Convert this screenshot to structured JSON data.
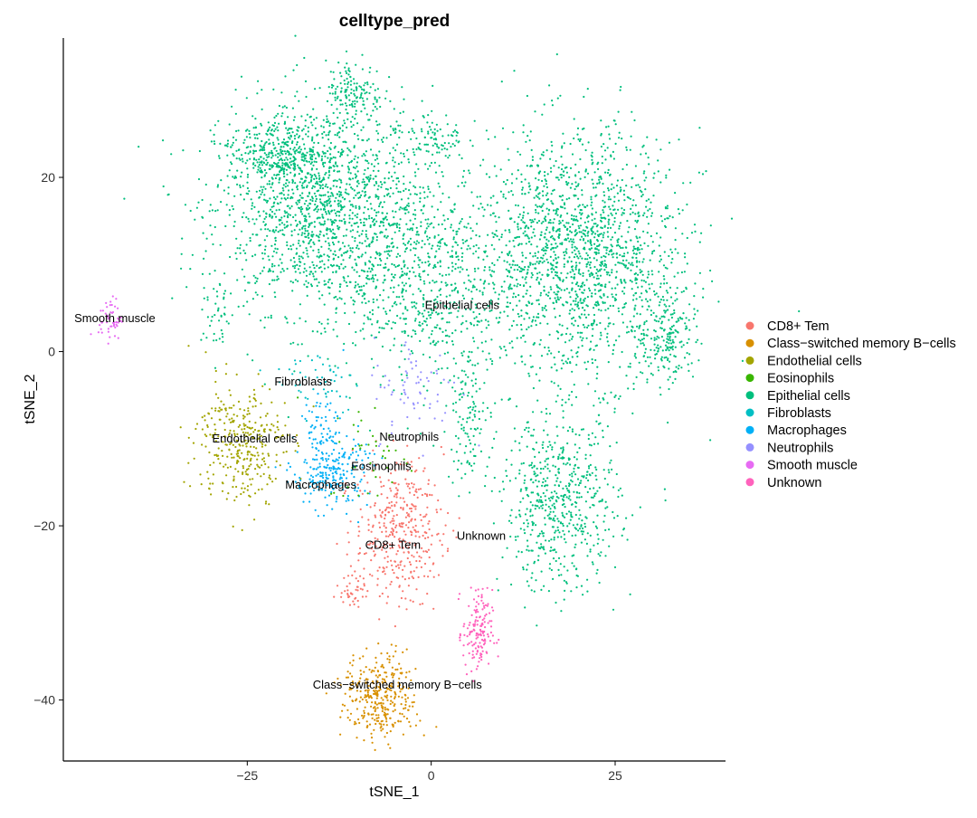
{
  "chart_data": {
    "type": "scatter",
    "title": "celltype_pred",
    "xlabel": "tSNE_1",
    "ylabel": "tSNE_2",
    "xlim": [
      -50,
      40
    ],
    "ylim": [
      -47,
      36
    ],
    "xticks": [
      -25,
      0,
      25
    ],
    "yticks": [
      -40,
      -20,
      0,
      20
    ],
    "grid": false,
    "legend_position": "right",
    "categories": [
      {
        "name": "CD8+ Tem",
        "color": "#F8766D"
      },
      {
        "name": "Class−switched memory B−cells",
        "color": "#D89000"
      },
      {
        "name": "Endothelial cells",
        "color": "#A3A500"
      },
      {
        "name": "Eosinophils",
        "color": "#39B600"
      },
      {
        "name": "Epithelial cells",
        "color": "#00BF7D"
      },
      {
        "name": "Fibroblasts",
        "color": "#00BFC4"
      },
      {
        "name": "Macrophages",
        "color": "#00B0F6"
      },
      {
        "name": "Neutrophils",
        "color": "#9590FF"
      },
      {
        "name": "Smooth muscle",
        "color": "#E76BF3"
      },
      {
        "name": "Unknown",
        "color": "#FF62BC"
      }
    ],
    "clusters_approx": [
      {
        "category": 4,
        "center": [
          -15.4,
          16.6
        ],
        "sd": [
          7,
          6
        ],
        "n": 1500
      },
      {
        "category": 4,
        "center": [
          -21.6,
          22.8
        ],
        "sd": [
          3,
          2
        ],
        "n": 250
      },
      {
        "category": 4,
        "center": [
          -10.5,
          29.5
        ],
        "sd": [
          2,
          2
        ],
        "n": 150
      },
      {
        "category": 4,
        "center": [
          -2,
          9
        ],
        "sd": [
          6,
          6
        ],
        "n": 700
      },
      {
        "category": 4,
        "center": [
          0.5,
          24.5
        ],
        "sd": [
          2,
          1.5
        ],
        "n": 80
      },
      {
        "category": 4,
        "center": [
          20,
          11
        ],
        "sd": [
          7,
          7
        ],
        "n": 1700
      },
      {
        "category": 4,
        "center": [
          32,
          2
        ],
        "sd": [
          2,
          3
        ],
        "n": 200
      },
      {
        "category": 4,
        "center": [
          17.5,
          -17.5
        ],
        "sd": [
          4,
          5
        ],
        "n": 600
      },
      {
        "category": 4,
        "center": [
          -29,
          4
        ],
        "sd": [
          1,
          2
        ],
        "n": 40
      },
      {
        "category": 4,
        "center": [
          5,
          -7
        ],
        "sd": [
          1.5,
          4
        ],
        "n": 120
      },
      {
        "category": 2,
        "center": [
          -25.9,
          -10.5
        ],
        "sd": [
          3,
          3.5
        ],
        "n": 330
      },
      {
        "category": 6,
        "center": [
          -13.6,
          -14
        ],
        "sd": [
          2.5,
          2
        ],
        "n": 220
      },
      {
        "category": 6,
        "center": [
          -14.8,
          -8.4
        ],
        "sd": [
          1.5,
          2
        ],
        "n": 70
      },
      {
        "category": 0,
        "center": [
          -4.4,
          -20.5
        ],
        "sd": [
          3,
          4
        ],
        "n": 380
      },
      {
        "category": 0,
        "center": [
          -10.5,
          -27.5
        ],
        "sd": [
          1,
          1
        ],
        "n": 40
      },
      {
        "category": 1,
        "center": [
          -6.9,
          -39.7
        ],
        "sd": [
          2.5,
          2.5
        ],
        "n": 330
      },
      {
        "category": 9,
        "center": [
          6.3,
          -32.4
        ],
        "sd": [
          1,
          2.5
        ],
        "n": 150
      },
      {
        "category": 8,
        "center": [
          -43.6,
          3.8
        ],
        "sd": [
          0.8,
          1.2
        ],
        "n": 50
      },
      {
        "category": 5,
        "center": [
          -15.4,
          -3.2
        ],
        "sd": [
          3,
          2
        ],
        "n": 50
      },
      {
        "category": 7,
        "center": [
          -2,
          -4.3
        ],
        "sd": [
          3,
          3
        ],
        "n": 70
      },
      {
        "category": 3,
        "center": [
          -8,
          -11.6
        ],
        "sd": [
          3,
          3
        ],
        "n": 40
      }
    ],
    "annotations": [
      {
        "text": "Smooth muscle",
        "x": -43,
        "y": 3.8
      },
      {
        "text": "Epithelial cells",
        "x": 4.2,
        "y": 5.3
      },
      {
        "text": "Fibroblasts",
        "x": -17.4,
        "y": -3.5
      },
      {
        "text": "Endothelial cells",
        "x": -24,
        "y": -10
      },
      {
        "text": "Neutrophils",
        "x": -3,
        "y": -9.8
      },
      {
        "text": "Eosinophils",
        "x": -6.8,
        "y": -13.2
      },
      {
        "text": "Macrophages",
        "x": -15,
        "y": -15.3
      },
      {
        "text": "CD8+ Tem",
        "x": -5.2,
        "y": -22.2
      },
      {
        "text": "Unknown",
        "x": 6.8,
        "y": -21.2
      },
      {
        "text": "Class−switched memory B−cells",
        "x": -4.6,
        "y": -38.3
      }
    ]
  }
}
